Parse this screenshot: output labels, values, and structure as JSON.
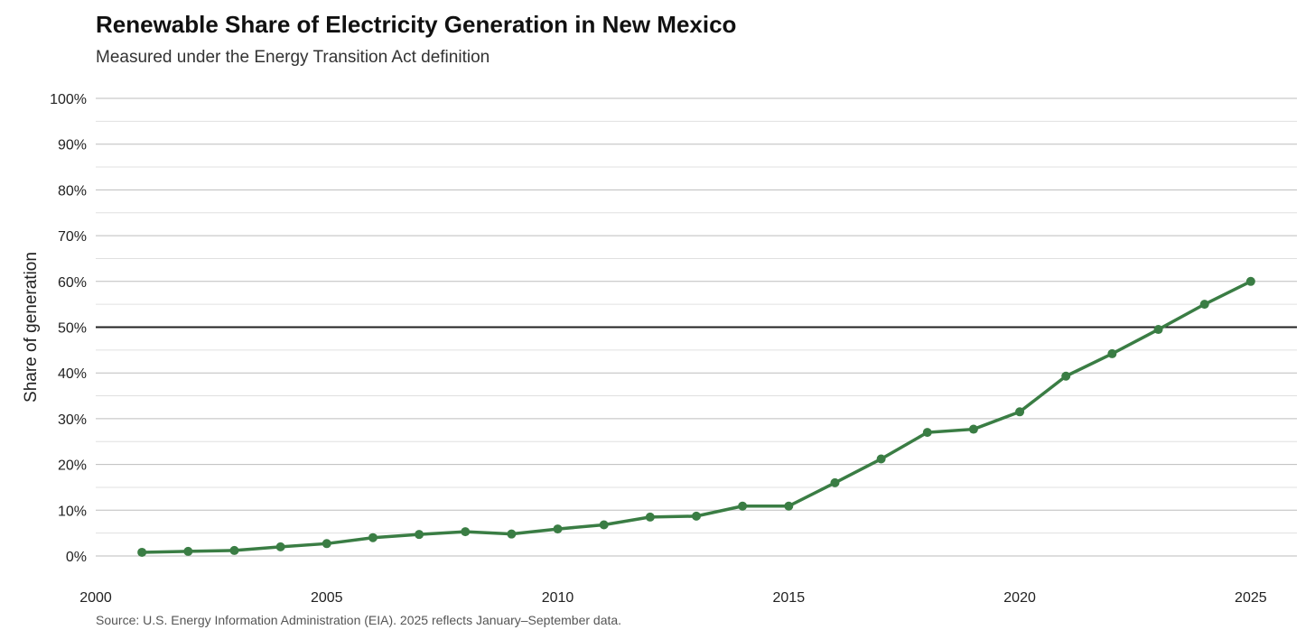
{
  "header": {
    "title": "Renewable Share of Electricity Generation in New Mexico",
    "subtitle": "Measured under the Energy Transition Act definition"
  },
  "footer": {
    "source": "Source: U.S. Energy Information Administration (EIA). 2025 reflects January–September data."
  },
  "colors": {
    "series": "#3a7d44",
    "reference_line": "#222222",
    "grid_major": "#bdbdbd",
    "grid_minor": "#e0e0e0"
  },
  "chart_data": {
    "type": "line",
    "title": "Renewable Share of Electricity Generation in New Mexico",
    "subtitle": "Measured under the Energy Transition Act definition",
    "xlabel": "",
    "ylabel": "Share of generation",
    "xlim": [
      2000,
      2026
    ],
    "ylim": [
      0,
      100
    ],
    "x_ticks": [
      2000,
      2005,
      2010,
      2015,
      2020,
      2025
    ],
    "y_ticks": [
      0,
      10,
      20,
      30,
      40,
      50,
      60,
      70,
      80,
      90,
      100
    ],
    "y_tick_labels": [
      "0%",
      "10%",
      "20%",
      "30%",
      "40%",
      "50%",
      "60%",
      "70%",
      "80%",
      "90%",
      "100%"
    ],
    "reference_line": {
      "y": 50
    },
    "grid": true,
    "legend": "none",
    "x": [
      2001,
      2002,
      2003,
      2004,
      2005,
      2006,
      2007,
      2008,
      2009,
      2010,
      2011,
      2012,
      2013,
      2014,
      2015,
      2016,
      2017,
      2018,
      2019,
      2020,
      2021,
      2022,
      2023,
      2024,
      2025
    ],
    "series": [
      {
        "values": [
          0.8,
          1.0,
          1.2,
          2.0,
          2.7,
          4.0,
          4.7,
          5.3,
          4.8,
          5.9,
          6.8,
          8.5,
          8.7,
          10.9,
          10.9,
          16.0,
          21.2,
          27.0,
          27.7,
          31.5,
          39.3,
          44.2,
          49.5,
          55.0,
          60.0
        ]
      }
    ]
  }
}
